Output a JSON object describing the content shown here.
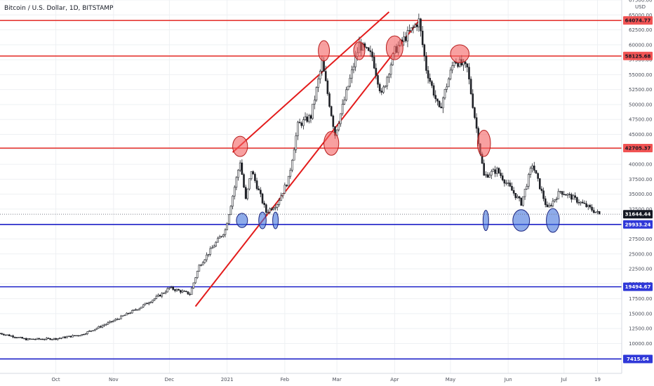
{
  "header": {
    "title": "Bitcoin / U.S. Dollar, 1D, BITSTAMP"
  },
  "chart_data": {
    "type": "candlestick",
    "title": "Bitcoin / U.S. Dollar, 1D, BITSTAMP",
    "y_unit_label": "USD",
    "ylim": [
      5000,
      67500
    ],
    "y_ticks": [
      "10000.00",
      "12500.00",
      "15000.00",
      "17500.00",
      "20000.00",
      "22500.00",
      "25000.00",
      "27500.00",
      "30000.00",
      "32500.00",
      "35000.00",
      "37500.00",
      "40000.00",
      "42500.00",
      "45000.00",
      "47500.00",
      "50000.00",
      "52500.00",
      "55000.00",
      "57500.00",
      "60000.00",
      "62500.00",
      "65000.00",
      "67500.00"
    ],
    "x_ticks": [
      {
        "label": "Oct",
        "date": "2020-10-01"
      },
      {
        "label": "Nov",
        "date": "2020-11-01"
      },
      {
        "label": "Dec",
        "date": "2020-12-01"
      },
      {
        "label": "2021",
        "date": "2021-01-01"
      },
      {
        "label": "Feb",
        "date": "2021-02-01"
      },
      {
        "label": "Mar",
        "date": "2021-03-01"
      },
      {
        "label": "Apr",
        "date": "2021-04-01"
      },
      {
        "label": "May",
        "date": "2021-05-01"
      },
      {
        "label": "Jun",
        "date": "2021-06-01"
      },
      {
        "label": "Jul",
        "date": "2021-07-01"
      },
      {
        "label": "19",
        "date": "2021-07-19"
      }
    ],
    "xlim": [
      "2020-09-01",
      "2021-08-01"
    ],
    "current_price": {
      "label": "31644.44",
      "value": 31644.44
    },
    "resistance_levels": [
      {
        "label": "64074.77",
        "value": 64074.77,
        "color": "#e53935"
      },
      {
        "label": "58125.68",
        "value": 58125.68,
        "color": "#e53935"
      },
      {
        "label": "42705.37",
        "value": 42705.37,
        "color": "#e53935"
      }
    ],
    "support_levels": [
      {
        "label": "29933.24",
        "value": 29933.24,
        "color": "#1e22c8"
      },
      {
        "label": "19494.67",
        "value": 19494.67,
        "color": "#1e22c8"
      },
      {
        "label": "7415.64",
        "value": 7415.64,
        "color": "#1e22c8"
      }
    ],
    "trend_channel": [
      {
        "start": {
          "date": "2020-12-15",
          "value": 16200
        },
        "end": {
          "date": "2021-04-14",
          "value": 64000
        }
      },
      {
        "start": {
          "date": "2021-01-04",
          "value": 42000
        },
        "end": {
          "date": "2021-03-29",
          "value": 65500
        }
      }
    ],
    "highlights": [
      {
        "date": "2021-01-08",
        "value": 43000,
        "rx_days": 4,
        "ry_value": 1700,
        "color": "red"
      },
      {
        "date": "2021-02-22",
        "value": 59000,
        "rx_days": 3,
        "ry_value": 1700,
        "color": "red"
      },
      {
        "date": "2021-02-26",
        "value": 43500,
        "rx_days": 4,
        "ry_value": 2000,
        "color": "red"
      },
      {
        "date": "2021-03-13",
        "value": 59000,
        "rx_days": 3,
        "ry_value": 1500,
        "color": "red"
      },
      {
        "date": "2021-04-01",
        "value": 59500,
        "rx_days": 4.5,
        "ry_value": 2000,
        "color": "red"
      },
      {
        "date": "2021-05-06",
        "value": 58500,
        "rx_days": 5,
        "ry_value": 1500,
        "color": "red"
      },
      {
        "date": "2021-05-19",
        "value": 43500,
        "rx_days": 3.5,
        "ry_value": 2200,
        "color": "red"
      },
      {
        "date": "2021-01-09",
        "value": 30600,
        "rx_days": 3,
        "ry_value": 1200,
        "color": "blue"
      },
      {
        "date": "2021-01-20",
        "value": 30600,
        "rx_days": 2,
        "ry_value": 1400,
        "color": "blue"
      },
      {
        "date": "2021-01-27",
        "value": 30600,
        "rx_days": 1.5,
        "ry_value": 1400,
        "color": "blue"
      },
      {
        "date": "2021-05-20",
        "value": 30600,
        "rx_days": 1.5,
        "ry_value": 1700,
        "color": "blue"
      },
      {
        "date": "2021-06-08",
        "value": 30600,
        "rx_days": 4.5,
        "ry_value": 1800,
        "color": "blue"
      },
      {
        "date": "2021-06-25",
        "value": 30600,
        "rx_days": 3.5,
        "ry_value": 2000,
        "color": "blue"
      }
    ],
    "price_path": [
      [
        "2020-09-01",
        11700
      ],
      [
        "2020-09-15",
        10700
      ],
      [
        "2020-10-01",
        10800
      ],
      [
        "2020-10-15",
        11500
      ],
      [
        "2020-11-01",
        13800
      ],
      [
        "2020-11-15",
        16000
      ],
      [
        "2020-11-27",
        18300
      ],
      [
        "2020-12-01",
        19300
      ],
      [
        "2020-12-12",
        18300
      ],
      [
        "2020-12-17",
        23000
      ],
      [
        "2020-12-31",
        29000
      ],
      [
        "2021-01-08",
        40500
      ],
      [
        "2021-01-11",
        34000
      ],
      [
        "2021-01-14",
        39000
      ],
      [
        "2021-01-22",
        32000
      ],
      [
        "2021-01-28",
        33500
      ],
      [
        "2021-02-03",
        37500
      ],
      [
        "2021-02-08",
        46500
      ],
      [
        "2021-02-15",
        48000
      ],
      [
        "2021-02-21",
        57000
      ],
      [
        "2021-02-28",
        45000
      ],
      [
        "2021-03-13",
        60000
      ],
      [
        "2021-03-20",
        58000
      ],
      [
        "2021-03-25",
        51500
      ],
      [
        "2021-04-01",
        59000
      ],
      [
        "2021-04-14",
        64000
      ],
      [
        "2021-04-18",
        56000
      ],
      [
        "2021-04-25",
        49000
      ],
      [
        "2021-05-03",
        57500
      ],
      [
        "2021-05-10",
        56000
      ],
      [
        "2021-05-13",
        50000
      ],
      [
        "2021-05-19",
        38000
      ],
      [
        "2021-05-26",
        39000
      ],
      [
        "2021-06-08",
        33500
      ],
      [
        "2021-06-14",
        40000
      ],
      [
        "2021-06-22",
        32500
      ],
      [
        "2021-06-29",
        35500
      ],
      [
        "2021-07-05",
        34500
      ],
      [
        "2021-07-14",
        32800
      ],
      [
        "2021-07-20",
        31644
      ]
    ]
  }
}
